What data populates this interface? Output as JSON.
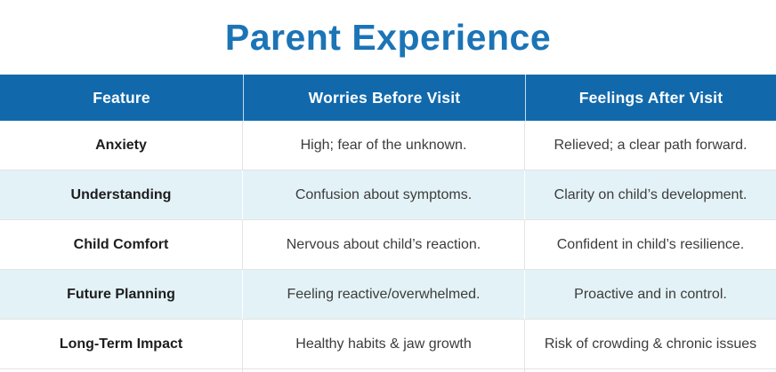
{
  "title": "Parent Experience",
  "colors": {
    "title": "#1b74b6",
    "header_bg": "#1169ac",
    "header_text": "#ffffff",
    "row_alt_bg": "#e3f2f6",
    "body_text": "#3c3c3c",
    "feature_text": "#1d1d1f",
    "border": "#e4e4e4"
  },
  "table": {
    "columns": [
      {
        "label": "Feature"
      },
      {
        "label": "Worries Before Visit"
      },
      {
        "label": "Feelings After Visit"
      }
    ],
    "rows": [
      {
        "feature": "Anxiety",
        "before": "High; fear of the unknown.",
        "after": "Relieved; a clear path forward."
      },
      {
        "feature": "Understanding",
        "before": "Confusion about symptoms.",
        "after": "Clarity on child’s development."
      },
      {
        "feature": "Child Comfort",
        "before": "Nervous about child’s reaction.",
        "after": "Confident in child’s resilience."
      },
      {
        "feature": "Future Planning",
        "before": "Feeling reactive/overwhelmed.",
        "after": "Proactive and in control."
      },
      {
        "feature": "Long-Term Impact",
        "before": "Healthy habits & jaw growth",
        "after": "Risk of crowding & chronic issues"
      }
    ]
  }
}
